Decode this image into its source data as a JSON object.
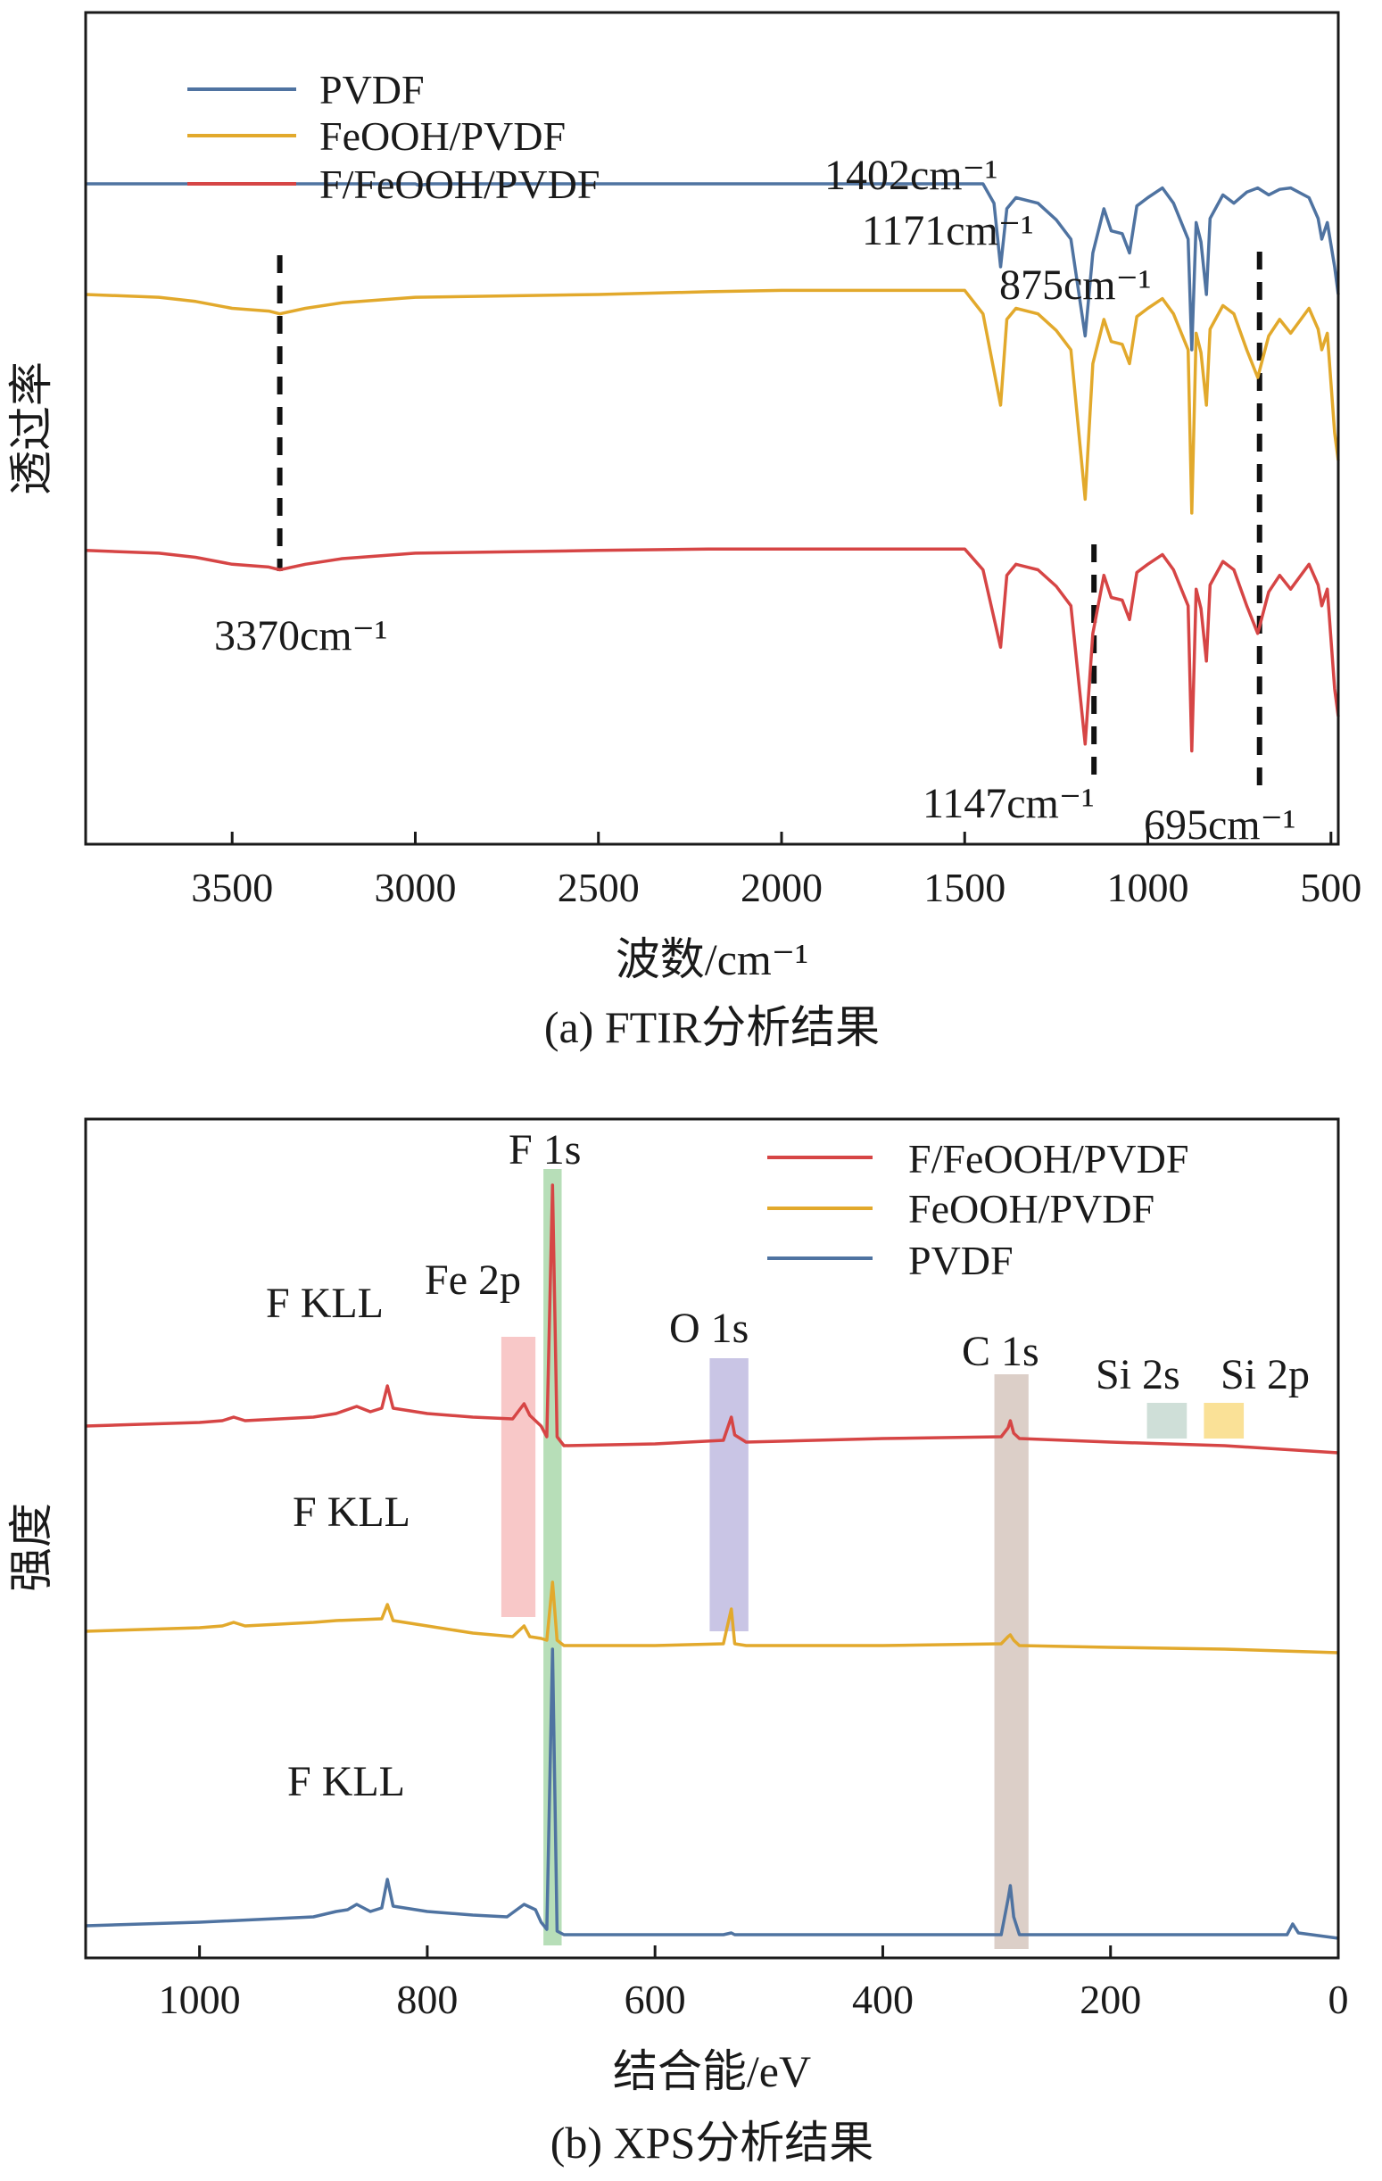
{
  "chart_data": [
    {
      "type": "line",
      "caption": "(a) FTIR分析结果",
      "xlabel": "波数/cm⁻¹",
      "ylabel": "透过率",
      "xlim": [
        3900,
        480
      ],
      "xticks": [
        3500,
        3000,
        2500,
        2000,
        1500,
        1000,
        500
      ],
      "y_axis_units": "arbitrary (transmittance, offset traces)",
      "legend": {
        "position": "top-left",
        "entries": [
          "PVDF",
          "FeOOH/PVDF",
          "F/FeOOH/PVDF"
        ]
      },
      "series": [
        {
          "name": "PVDF",
          "color": "#4f73a1",
          "offset": 80,
          "points": [
            [
              3900,
              0
            ],
            [
              3000,
              0
            ],
            [
              2990,
              -1
            ],
            [
              2960,
              0
            ],
            [
              1450,
              0
            ],
            [
              1420,
              -14
            ],
            [
              1402,
              -60
            ],
            [
              1385,
              -18
            ],
            [
              1360,
              -10
            ],
            [
              1300,
              -14
            ],
            [
              1250,
              -26
            ],
            [
              1210,
              -40
            ],
            [
              1171,
              -110
            ],
            [
              1150,
              -50
            ],
            [
              1120,
              -18
            ],
            [
              1100,
              -34
            ],
            [
              1070,
              -36
            ],
            [
              1050,
              -50
            ],
            [
              1030,
              -16
            ],
            [
              1000,
              -10
            ],
            [
              960,
              -3
            ],
            [
              930,
              -14
            ],
            [
              890,
              -40
            ],
            [
              880,
              -120
            ],
            [
              868,
              -28
            ],
            [
              855,
              -42
            ],
            [
              840,
              -80
            ],
            [
              830,
              -25
            ],
            [
              795,
              -8
            ],
            [
              765,
              -14
            ],
            [
              730,
              -6
            ],
            [
              700,
              -3
            ],
            [
              670,
              -8
            ],
            [
              640,
              -4
            ],
            [
              610,
              -3
            ],
            [
              560,
              -10
            ],
            [
              535,
              -25
            ],
            [
              525,
              -40
            ],
            [
              510,
              -28
            ],
            [
              490,
              -60
            ],
            [
              480,
              -80
            ]
          ]
        },
        {
          "name": "FeOOH/PVDF",
          "color": "#e2a92c",
          "offset": 0,
          "points": [
            [
              3900,
              0
            ],
            [
              3700,
              -2
            ],
            [
              3600,
              -5
            ],
            [
              3500,
              -10
            ],
            [
              3400,
              -12
            ],
            [
              3370,
              -14
            ],
            [
              3300,
              -10
            ],
            [
              3200,
              -6
            ],
            [
              3000,
              -2
            ],
            [
              2500,
              0
            ],
            [
              2200,
              2
            ],
            [
              2000,
              3
            ],
            [
              1500,
              3
            ],
            [
              1450,
              -14
            ],
            [
              1402,
              -80
            ],
            [
              1385,
              -18
            ],
            [
              1360,
              -10
            ],
            [
              1300,
              -14
            ],
            [
              1250,
              -26
            ],
            [
              1210,
              -40
            ],
            [
              1171,
              -148
            ],
            [
              1150,
              -50
            ],
            [
              1120,
              -18
            ],
            [
              1100,
              -34
            ],
            [
              1070,
              -36
            ],
            [
              1050,
              -50
            ],
            [
              1030,
              -16
            ],
            [
              1000,
              -10
            ],
            [
              960,
              -3
            ],
            [
              930,
              -14
            ],
            [
              890,
              -40
            ],
            [
              880,
              -158
            ],
            [
              868,
              -28
            ],
            [
              855,
              -42
            ],
            [
              840,
              -80
            ],
            [
              830,
              -25
            ],
            [
              795,
              -8
            ],
            [
              765,
              -14
            ],
            [
              730,
              -40
            ],
            [
              700,
              -60
            ],
            [
              670,
              -30
            ],
            [
              640,
              -18
            ],
            [
              610,
              -28
            ],
            [
              560,
              -10
            ],
            [
              535,
              -25
            ],
            [
              525,
              -40
            ],
            [
              510,
              -28
            ],
            [
              490,
              -100
            ],
            [
              480,
              -120
            ]
          ]
        },
        {
          "name": "F/FeOOH/PVDF",
          "color": "#d64545",
          "offset": -185,
          "points": [
            [
              3900,
              0
            ],
            [
              3700,
              -2
            ],
            [
              3600,
              -5
            ],
            [
              3500,
              -10
            ],
            [
              3400,
              -12
            ],
            [
              3370,
              -14
            ],
            [
              3300,
              -10
            ],
            [
              3200,
              -6
            ],
            [
              3000,
              -2
            ],
            [
              2500,
              0
            ],
            [
              2200,
              1
            ],
            [
              2000,
              1
            ],
            [
              1500,
              1
            ],
            [
              1450,
              -14
            ],
            [
              1402,
              -70
            ],
            [
              1385,
              -18
            ],
            [
              1360,
              -10
            ],
            [
              1300,
              -14
            ],
            [
              1250,
              -26
            ],
            [
              1210,
              -40
            ],
            [
              1171,
              -140
            ],
            [
              1150,
              -60
            ],
            [
              1120,
              -18
            ],
            [
              1100,
              -34
            ],
            [
              1070,
              -36
            ],
            [
              1050,
              -50
            ],
            [
              1030,
              -16
            ],
            [
              1000,
              -10
            ],
            [
              960,
              -3
            ],
            [
              930,
              -14
            ],
            [
              890,
              -40
            ],
            [
              880,
              -145
            ],
            [
              868,
              -28
            ],
            [
              855,
              -42
            ],
            [
              840,
              -80
            ],
            [
              830,
              -25
            ],
            [
              795,
              -8
            ],
            [
              765,
              -14
            ],
            [
              730,
              -40
            ],
            [
              700,
              -60
            ],
            [
              670,
              -30
            ],
            [
              640,
              -18
            ],
            [
              610,
              -28
            ],
            [
              560,
              -10
            ],
            [
              535,
              -25
            ],
            [
              525,
              -40
            ],
            [
              510,
              -28
            ],
            [
              490,
              -100
            ],
            [
              480,
              -120
            ]
          ]
        }
      ],
      "annotations": [
        {
          "text": "1402cm⁻¹",
          "x": 1402
        },
        {
          "text": "1171cm⁻¹",
          "x": 1171
        },
        {
          "text": "875cm⁻¹",
          "x": 875
        },
        {
          "text": "3370cm⁻¹",
          "x": 3370
        },
        {
          "text": "1147cm⁻¹",
          "x": 1147
        },
        {
          "text": "695cm⁻¹",
          "x": 695
        }
      ],
      "marker_lines": [
        3370,
        1147,
        695
      ]
    },
    {
      "type": "line",
      "caption": "(b) XPS分析结果",
      "xlabel": "结合能/eV",
      "ylabel": "强度",
      "xlim": [
        1100,
        0
      ],
      "xticks": [
        1000,
        800,
        600,
        400,
        200,
        0
      ],
      "y_axis_units": "arbitrary (intensity, offset traces)",
      "legend": {
        "position": "top-right",
        "entries": [
          "F/FeOOH/PVDF",
          "FeOOH/PVDF",
          "PVDF"
        ]
      },
      "series": [
        {
          "name": "F/FeOOH/PVDF",
          "color": "#d64545",
          "offset": 560,
          "points": [
            [
              1100,
              0
            ],
            [
              1000,
              4
            ],
            [
              980,
              6
            ],
            [
              970,
              10
            ],
            [
              960,
              6
            ],
            [
              900,
              10
            ],
            [
              880,
              14
            ],
            [
              862,
              22
            ],
            [
              850,
              16
            ],
            [
              840,
              20
            ],
            [
              835,
              45
            ],
            [
              830,
              20
            ],
            [
              800,
              14
            ],
            [
              760,
              10
            ],
            [
              725,
              8
            ],
            [
              715,
              25
            ],
            [
              710,
              12
            ],
            [
              700,
              0
            ],
            [
              695,
              -12
            ],
            [
              690,
              270
            ],
            [
              686,
              -12
            ],
            [
              680,
              -22
            ],
            [
              600,
              -20
            ],
            [
              540,
              -16
            ],
            [
              533,
              10
            ],
            [
              530,
              -10
            ],
            [
              520,
              -18
            ],
            [
              400,
              -14
            ],
            [
              296,
              -12
            ],
            [
              290,
              -2
            ],
            [
              288,
              6
            ],
            [
              285,
              -8
            ],
            [
              280,
              -14
            ],
            [
              200,
              -18
            ],
            [
              100,
              -22
            ],
            [
              50,
              -26
            ],
            [
              0,
              -30
            ]
          ]
        },
        {
          "name": "FeOOH/PVDF",
          "color": "#e2a92c",
          "offset": 330,
          "points": [
            [
              1100,
              0
            ],
            [
              1000,
              4
            ],
            [
              980,
              6
            ],
            [
              970,
              10
            ],
            [
              960,
              6
            ],
            [
              900,
              10
            ],
            [
              880,
              12
            ],
            [
              840,
              14
            ],
            [
              835,
              30
            ],
            [
              830,
              12
            ],
            [
              800,
              6
            ],
            [
              760,
              -2
            ],
            [
              725,
              -6
            ],
            [
              715,
              6
            ],
            [
              710,
              -6
            ],
            [
              700,
              -8
            ],
            [
              695,
              -10
            ],
            [
              690,
              55
            ],
            [
              686,
              -10
            ],
            [
              680,
              -16
            ],
            [
              600,
              -16
            ],
            [
              540,
              -14
            ],
            [
              533,
              25
            ],
            [
              530,
              -14
            ],
            [
              520,
              -16
            ],
            [
              400,
              -16
            ],
            [
              296,
              -14
            ],
            [
              290,
              -6
            ],
            [
              288,
              -4
            ],
            [
              285,
              -10
            ],
            [
              280,
              -16
            ],
            [
              200,
              -18
            ],
            [
              100,
              -20
            ],
            [
              50,
              -22
            ],
            [
              0,
              -24
            ]
          ]
        },
        {
          "name": "PVDF",
          "color": "#4f73a1",
          "offset": 0,
          "points": [
            [
              1100,
              0
            ],
            [
              1000,
              4
            ],
            [
              900,
              10
            ],
            [
              880,
              16
            ],
            [
              870,
              18
            ],
            [
              862,
              24
            ],
            [
              850,
              16
            ],
            [
              840,
              20
            ],
            [
              835,
              52
            ],
            [
              830,
              22
            ],
            [
              800,
              16
            ],
            [
              760,
              12
            ],
            [
              730,
              10
            ],
            [
              715,
              24
            ],
            [
              705,
              18
            ],
            [
              700,
              4
            ],
            [
              695,
              -4
            ],
            [
              690,
              310
            ],
            [
              686,
              -6
            ],
            [
              680,
              -10
            ],
            [
              600,
              -10
            ],
            [
              540,
              -10
            ],
            [
              533,
              -8
            ],
            [
              530,
              -10
            ],
            [
              400,
              -10
            ],
            [
              296,
              -10
            ],
            [
              290,
              30
            ],
            [
              288,
              45
            ],
            [
              285,
              10
            ],
            [
              280,
              -10
            ],
            [
              200,
              -10
            ],
            [
              100,
              -10
            ],
            [
              45,
              -10
            ],
            [
              40,
              2
            ],
            [
              35,
              -8
            ],
            [
              0,
              -14
            ]
          ]
        }
      ],
      "peak_labels": [
        "F 1s",
        "Fe 2p",
        "F KLL",
        "O 1s",
        "C 1s",
        "Si 2s",
        "Si 2p",
        "F KLL",
        "F KLL"
      ],
      "highlight_bands": [
        {
          "label": "F 1s",
          "range": [
            698,
            682
          ],
          "color": "#7bc27e"
        },
        {
          "label": "Fe 2p",
          "range": [
            735,
            705
          ],
          "color": "#f39a9a"
        },
        {
          "label": "O 1s",
          "range": [
            552,
            518
          ],
          "color": "#9d95cf"
        },
        {
          "label": "C 1s",
          "range": [
            302,
            272
          ],
          "color": "#bfa79a"
        },
        {
          "label": "Si 2s",
          "range": [
            168,
            133
          ],
          "color": "#a8c4b8"
        },
        {
          "label": "Si 2p",
          "range": [
            118,
            83
          ],
          "color": "#f5c842"
        }
      ]
    }
  ]
}
